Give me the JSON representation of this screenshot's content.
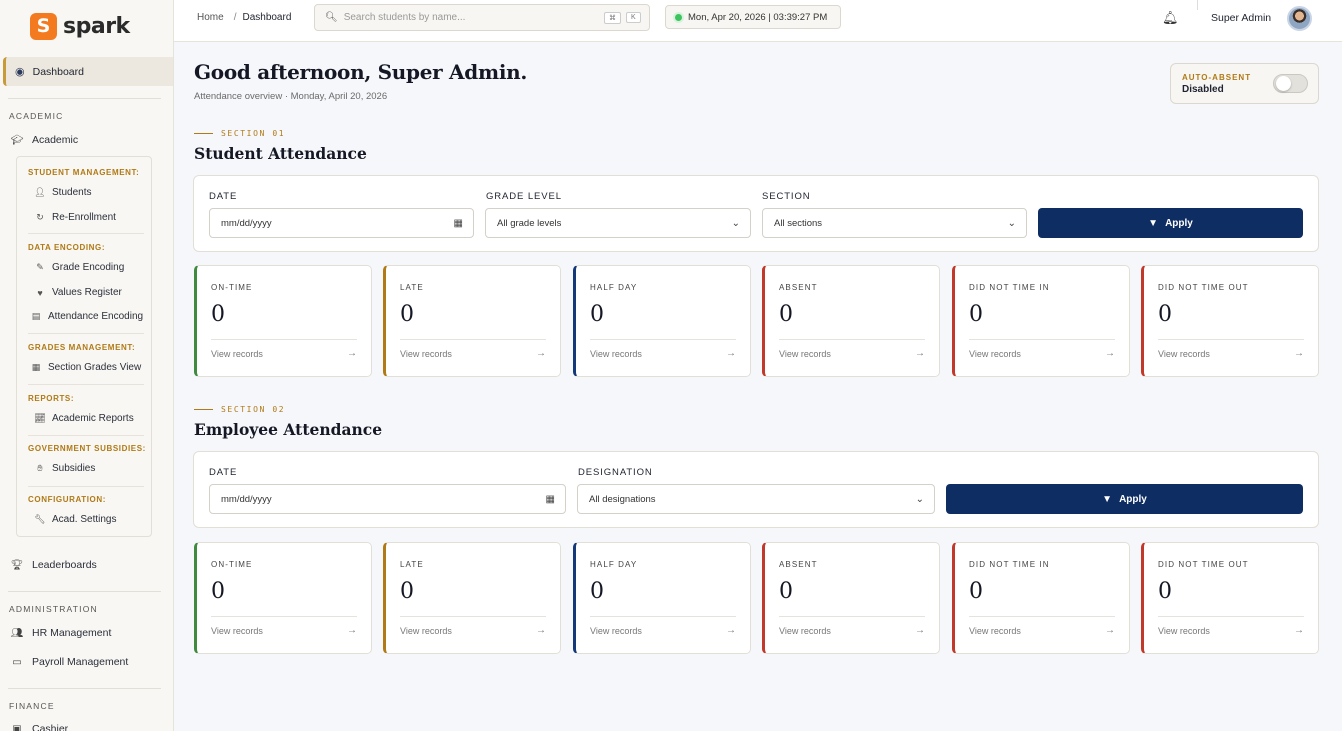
{
  "brand": {
    "logo_letter": "S",
    "name": "spark"
  },
  "sidebar": {
    "active_item": "Dashboard",
    "academic_label": "ACADEMIC",
    "academic_item": "Academic",
    "categories": {
      "student_management": "STUDENT MANAGEMENT:",
      "data_encoding": "DATA ENCODING:",
      "grades_management": "GRADES MANAGEMENT:",
      "reports": "REPORTS:",
      "government_subsidies": "GOVERNMENT SUBSIDIES:",
      "configuration": "CONFIGURATION:"
    },
    "sub_items": {
      "students": "Students",
      "re_enrollment": "Re-Enrollment",
      "grade_encoding": "Grade Encoding",
      "values_register": "Values Register",
      "attendance_encoding": "Attendance Encoding",
      "section_grades_view": "Section Grades View",
      "academic_reports": "Academic Reports",
      "subsidies": "Subsidies",
      "acad_settings": "Acad. Settings"
    },
    "leaderboards": "Leaderboards",
    "administration_label": "ADMINISTRATION",
    "hr_management": "HR Management",
    "payroll_management": "Payroll Management",
    "finance_label": "FINANCE",
    "cashier": "Cashier"
  },
  "topbar": {
    "breadcrumb_home": "Home",
    "breadcrumb_sep": "/",
    "breadcrumb_current": "Dashboard",
    "search_placeholder": "Search students by name...",
    "kbd_cmd": "⌘",
    "kbd_k": "K",
    "clock": "Mon, Apr 20, 2026 | 03:39:27 PM",
    "user_name": "Super Admin"
  },
  "header": {
    "greeting": "Good afternoon, Super Admin.",
    "subtitle": "Attendance overview · Monday, April 20, 2026",
    "auto_absent_label": "AUTO-ABSENT",
    "auto_absent_value": "Disabled"
  },
  "student_section": {
    "tag": "SECTION 01",
    "title": "Student Attendance",
    "date_label": "DATE",
    "date_placeholder": "mm/dd/yyyy",
    "grade_label": "GRADE LEVEL",
    "grade_value": "All grade levels",
    "section_label": "SECTION",
    "section_value": "All sections",
    "apply": "Apply",
    "stats": [
      {
        "label": "ON-TIME",
        "value": "0",
        "link": "View records",
        "color": "#3f8a3f"
      },
      {
        "label": "LATE",
        "value": "0",
        "link": "View records",
        "color": "#b07a16"
      },
      {
        "label": "HALF DAY",
        "value": "0",
        "link": "View records",
        "color": "#14397a"
      },
      {
        "label": "ABSENT",
        "value": "0",
        "link": "View records",
        "color": "#c0392b"
      },
      {
        "label": "DID NOT TIME IN",
        "value": "0",
        "link": "View records",
        "color": "#c0392b"
      },
      {
        "label": "DID NOT TIME OUT",
        "value": "0",
        "link": "View records",
        "color": "#c0392b"
      }
    ]
  },
  "employee_section": {
    "tag": "SECTION 02",
    "title": "Employee Attendance",
    "date_label": "DATE",
    "date_placeholder": "mm/dd/yyyy",
    "designation_label": "DESIGNATION",
    "designation_value": "All designations",
    "apply": "Apply",
    "stats": [
      {
        "label": "ON-TIME",
        "value": "0",
        "link": "View records",
        "color": "#3f8a3f"
      },
      {
        "label": "LATE",
        "value": "0",
        "link": "View records",
        "color": "#b07a16"
      },
      {
        "label": "HALF DAY",
        "value": "0",
        "link": "View records",
        "color": "#14397a"
      },
      {
        "label": "ABSENT",
        "value": "0",
        "link": "View records",
        "color": "#c0392b"
      },
      {
        "label": "DID NOT TIME IN",
        "value": "0",
        "link": "View records",
        "color": "#c0392b"
      },
      {
        "label": "DID NOT TIME OUT",
        "value": "0",
        "link": "View records",
        "color": "#c0392b"
      }
    ]
  },
  "colors": {
    "accent_gold": "#b07a16",
    "primary_navy": "#0e2e63",
    "brand_orange": "#f47a1f"
  }
}
